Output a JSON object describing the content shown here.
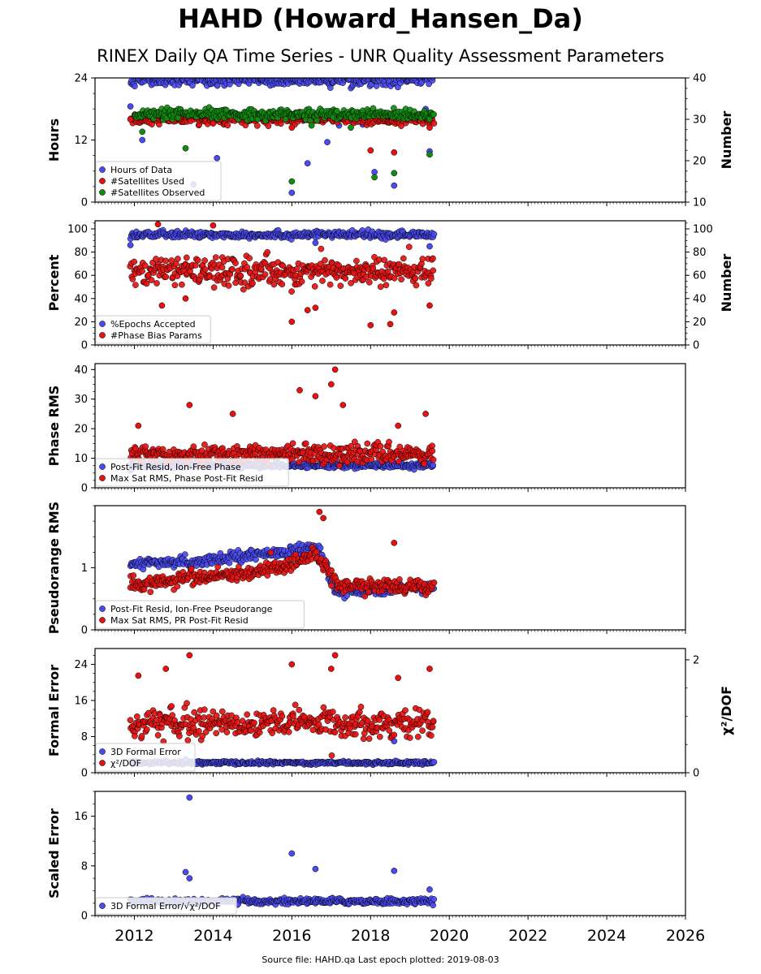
{
  "figure": {
    "title": "HAHD (Howard_Hansen_Da)",
    "subtitle": "RINEX Daily QA Time Series - UNR Quality Assessment Parameters",
    "source_note": "Source file: HAHD.qa Last epoch plotted: 2019-08-03"
  },
  "colors": {
    "blue": "#4a4af0",
    "red": "#e41212",
    "green": "#118c11"
  },
  "chart_data": [
    {
      "type": "scatter",
      "panel": "data-availability",
      "ylabel": "Hours",
      "y2label": "Number",
      "xlim": [
        2011.0,
        2026.0
      ],
      "ylim": [
        0,
        24
      ],
      "y2lim": [
        10,
        40
      ],
      "yticks": [
        "0",
        "12",
        "24"
      ],
      "y2ticks": [
        "10",
        "20",
        "30",
        "40"
      ],
      "legend_position": "lower-left",
      "series": [
        {
          "name": "Hours of Data",
          "axis": "left",
          "color": "blue",
          "start": 2011.9,
          "end": 2019.6,
          "center": 23.6,
          "spread": 1.0,
          "outliers": [
            [
              2011.9,
              18.5
            ],
            [
              2012.2,
              12.0
            ],
            [
              2013.5,
              3.4
            ],
            [
              2013.8,
              16.0
            ],
            [
              2014.1,
              8.5
            ],
            [
              2016.0,
              1.8
            ],
            [
              2016.4,
              7.5
            ],
            [
              2016.9,
              11.6
            ],
            [
              2017.2,
              14.8
            ],
            [
              2017.8,
              15.0
            ],
            [
              2018.1,
              5.8
            ],
            [
              2018.6,
              3.2
            ],
            [
              2019.4,
              18.0
            ],
            [
              2019.5,
              9.8
            ]
          ]
        },
        {
          "name": "#Satellites Used",
          "axis": "right",
          "color": "red",
          "start": 2011.9,
          "end": 2019.6,
          "center": 30.0,
          "spread": 1.0,
          "outliers": [
            [
              2011.9,
              30.0
            ],
            [
              2013.0,
              29.5
            ],
            [
              2014.0,
              29.0
            ],
            [
              2016.0,
              28.0
            ],
            [
              2018.0,
              22.5
            ],
            [
              2018.6,
              22.0
            ],
            [
              2019.5,
              28.0
            ]
          ]
        },
        {
          "name": "#Satellites Observed",
          "axis": "right",
          "color": "green",
          "start": 2012.0,
          "end": 2019.6,
          "center": 31.2,
          "spread": 1.0,
          "outliers": [
            [
              2012.2,
              27.0
            ],
            [
              2013.3,
              23.0
            ],
            [
              2016.0,
              15.0
            ],
            [
              2016.5,
              28.5
            ],
            [
              2017.5,
              28.0
            ],
            [
              2018.1,
              16.0
            ],
            [
              2018.6,
              17.0
            ],
            [
              2019.5,
              21.5
            ]
          ]
        }
      ]
    },
    {
      "type": "scatter",
      "panel": "epochs-bias",
      "ylabel": "Percent",
      "y2label": "Number",
      "xlim": [
        2011.0,
        2026.0
      ],
      "ylim": [
        0,
        107
      ],
      "y2lim": [
        0,
        107
      ],
      "yticks": [
        "0",
        "20",
        "40",
        "60",
        "80",
        "100"
      ],
      "y2ticks": [
        "0",
        "20",
        "40",
        "60",
        "80",
        "100"
      ],
      "legend_position": "lower-left",
      "series": [
        {
          "name": "%Epochs Accepted",
          "axis": "left",
          "color": "blue",
          "start": 2011.9,
          "end": 2019.6,
          "center": 95.0,
          "spread": 2.5,
          "outliers": [
            [
              2011.9,
              86.0
            ],
            [
              2016.6,
              88.0
            ],
            [
              2019.5,
              85.0
            ]
          ]
        },
        {
          "name": "#Phase Bias Params",
          "axis": "right",
          "color": "red",
          "start": 2011.9,
          "end": 2019.6,
          "center": 63.0,
          "spread": 10.0,
          "outliers": [
            [
              2012.6,
              104.0
            ],
            [
              2012.7,
              34.0
            ],
            [
              2013.3,
              40.0
            ],
            [
              2014.0,
              103.0
            ],
            [
              2016.0,
              20.0
            ],
            [
              2016.4,
              30.0
            ],
            [
              2016.6,
              32.0
            ],
            [
              2018.0,
              17.0
            ],
            [
              2018.5,
              18.0
            ],
            [
              2018.6,
              28.0
            ],
            [
              2019.5,
              34.0
            ]
          ]
        }
      ]
    },
    {
      "type": "scatter",
      "panel": "phase-rms",
      "ylabel": "Phase RMS",
      "xlim": [
        2011.0,
        2026.0
      ],
      "ylim": [
        0,
        42
      ],
      "yticks": [
        "0",
        "10",
        "20",
        "30",
        "40"
      ],
      "legend_position": "lower-left",
      "series": [
        {
          "name": "Post-Fit Resid, Ion-Free Phase",
          "axis": "left",
          "color": "blue",
          "start": 2011.9,
          "end": 2019.6,
          "center": 7.6,
          "spread": 0.8,
          "outliers": []
        },
        {
          "name": "Max Sat RMS, Phase Post-Fit Resid",
          "axis": "left",
          "color": "red",
          "start": 2011.9,
          "end": 2019.6,
          "center": 11.5,
          "spread": 2.5,
          "outliers": [
            [
              2012.1,
              21.0
            ],
            [
              2013.4,
              28.0
            ],
            [
              2014.5,
              25.0
            ],
            [
              2016.2,
              33.0
            ],
            [
              2016.6,
              31.0
            ],
            [
              2017.0,
              35.0
            ],
            [
              2017.1,
              40.0
            ],
            [
              2017.3,
              28.0
            ],
            [
              2018.7,
              21.0
            ],
            [
              2019.4,
              25.0
            ]
          ]
        }
      ]
    },
    {
      "type": "scatter",
      "panel": "pseudorange-rms",
      "ylabel": "Pseudorange RMS",
      "xlim": [
        2011.0,
        2026.0
      ],
      "ylim": [
        0,
        2.0
      ],
      "yticks": [
        "0",
        "1"
      ],
      "legend_position": "lower-left",
      "series": [
        {
          "name": "Post-Fit Resid, Ion-Free Pseudorange",
          "axis": "left",
          "color": "blue",
          "trend": [
            [
              2011.9,
              1.05
            ],
            [
              2013.5,
              1.1
            ],
            [
              2015.5,
              1.25
            ],
            [
              2016.7,
              1.3
            ],
            [
              2017.1,
              0.62
            ],
            [
              2019.6,
              0.68
            ]
          ],
          "spread": 0.07,
          "outliers": []
        },
        {
          "name": "Max Sat RMS, PR Post-Fit Resid",
          "axis": "left",
          "color": "red",
          "trend": [
            [
              2011.9,
              0.7
            ],
            [
              2013.0,
              0.82
            ],
            [
              2015.0,
              0.9
            ],
            [
              2016.6,
              1.2
            ],
            [
              2017.2,
              0.72
            ],
            [
              2019.6,
              0.68
            ]
          ],
          "spread": 0.1,
          "outliers": [
            [
              2016.7,
              1.9
            ],
            [
              2016.8,
              1.8
            ],
            [
              2018.6,
              1.4
            ]
          ]
        }
      ]
    },
    {
      "type": "scatter",
      "panel": "formal-error",
      "ylabel": "Formal Error",
      "y2label": "χ²/DOF",
      "xlim": [
        2011.0,
        2026.0
      ],
      "ylim": [
        0,
        27.5
      ],
      "y2lim": [
        0,
        2.2
      ],
      "yticks": [
        "0",
        "8",
        "16",
        "24"
      ],
      "y2ticks": [
        "0",
        "2"
      ],
      "legend_position": "lower-left",
      "series": [
        {
          "name": "3D Formal Error",
          "axis": "left",
          "color": "blue",
          "start": 2011.9,
          "end": 2019.6,
          "center": 2.2,
          "spread": 0.3,
          "outliers": [
            [
              2013.3,
              3.0
            ],
            [
              2018.6,
              7.0
            ]
          ]
        },
        {
          "name": "χ²/DOF",
          "axis": "left",
          "color": "red",
          "start": 2011.9,
          "end": 2019.6,
          "center": 11.0,
          "spread": 2.5,
          "outliers": [
            [
              2012.1,
              21.5
            ],
            [
              2012.8,
              23.0
            ],
            [
              2013.4,
              26.0
            ],
            [
              2016.0,
              24.0
            ],
            [
              2017.1,
              26.0
            ],
            [
              2017.0,
              23.0
            ],
            [
              2018.7,
              21.0
            ],
            [
              2019.5,
              23.0
            ]
          ]
        }
      ]
    },
    {
      "type": "scatter",
      "panel": "scaled-error",
      "ylabel": "Scaled Error",
      "xlim": [
        2011.0,
        2026.0
      ],
      "ylim": [
        0,
        20
      ],
      "yticks": [
        "0",
        "8",
        "16"
      ],
      "legend_position": "lower-left",
      "series": [
        {
          "name": "3D Formal Error/√χ²/DOF",
          "axis": "left",
          "color": "blue",
          "start": 2011.9,
          "end": 2019.6,
          "center": 2.3,
          "spread": 0.4,
          "outliers": [
            [
              2013.4,
              19.0
            ],
            [
              2013.3,
              7.0
            ],
            [
              2013.4,
              6.0
            ],
            [
              2016.0,
              10.0
            ],
            [
              2016.6,
              7.5
            ],
            [
              2018.6,
              7.2
            ],
            [
              2019.5,
              4.2
            ]
          ]
        }
      ]
    }
  ],
  "x_axis": {
    "tick_labels": [
      "2012",
      "2014",
      "2016",
      "2018",
      "2020",
      "2022",
      "2024",
      "2026"
    ],
    "tick_values": [
      2012,
      2014,
      2016,
      2018,
      2020,
      2022,
      2024,
      2026
    ]
  }
}
